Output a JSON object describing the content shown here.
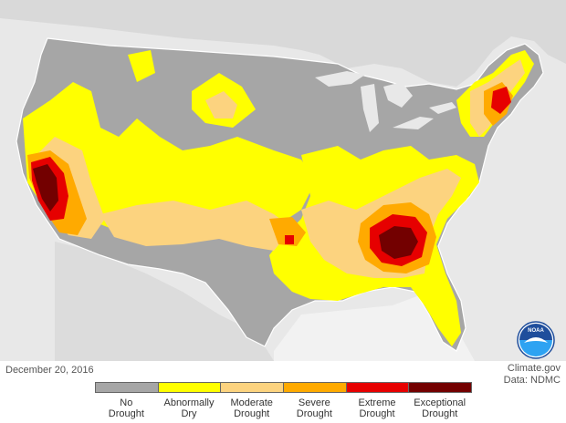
{
  "date": "December 20, 2016",
  "credit": {
    "line1": "Climate.gov",
    "line2": "Data: NDMC"
  },
  "logo": {
    "text": "NOAA"
  },
  "legend": [
    {
      "line1": "No",
      "line2": "Drought",
      "color": "#a6a6a6"
    },
    {
      "line1": "Abnormally",
      "line2": "Dry",
      "color": "#ffff00"
    },
    {
      "line1": "Moderate",
      "line2": "Drought",
      "color": "#fcd37f"
    },
    {
      "line1": "Severe",
      "line2": "Drought",
      "color": "#ffaa00"
    },
    {
      "line1": "Extreme",
      "line2": "Drought",
      "color": "#e60000"
    },
    {
      "line1": "Exceptional",
      "line2": "Drought",
      "color": "#730000"
    }
  ]
}
